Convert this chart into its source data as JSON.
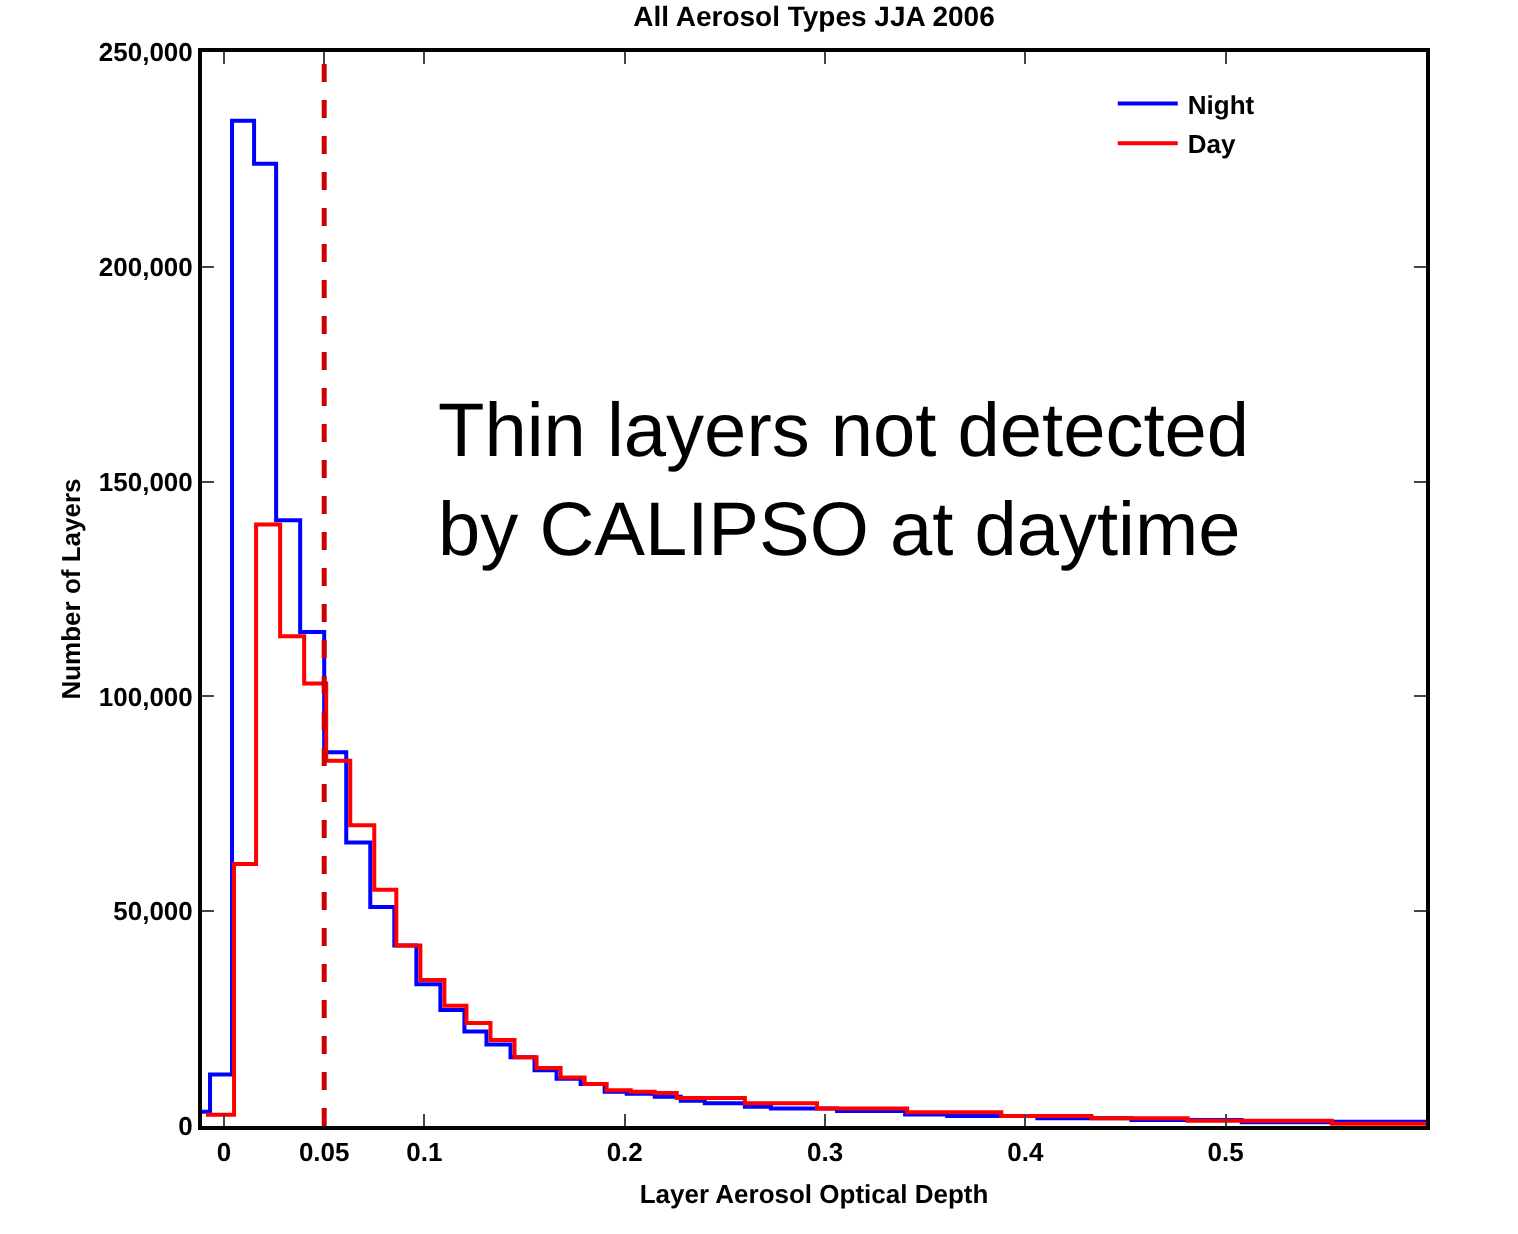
{
  "chart_data": {
    "type": "step",
    "title": "All Aerosol Types JJA 2006",
    "xlabel": "Layer Aerosol Optical Depth",
    "ylabel": "Number of Layers",
    "xlim": [
      -0.011,
      0.6
    ],
    "xticks": [
      0,
      0.05,
      0.1,
      0.2,
      0.3,
      0.4,
      0.5
    ],
    "ylim": [
      0,
      250000
    ],
    "yticks": [
      0,
      {
        "value": 50000,
        "label": "50,000"
      },
      {
        "value": 100000,
        "label": "100,000"
      },
      {
        "value": 150000,
        "label": "150,000"
      },
      {
        "value": 200000,
        "label": "200,000"
      },
      {
        "value": 250000,
        "label": "250,000"
      }
    ],
    "grid": false,
    "legend": "top right",
    "line_style": "solid",
    "marker": "none",
    "series": [
      {
        "name": "Night",
        "color": "#0000ff",
        "x": [
          -0.011,
          -0.007,
          0.004,
          0.015,
          0.026,
          0.038,
          0.05,
          0.061,
          0.073,
          0.085,
          0.096,
          0.108,
          0.12,
          0.131,
          0.143,
          0.155,
          0.166,
          0.178,
          0.19,
          0.201,
          0.215,
          0.228,
          0.24,
          0.26,
          0.273,
          0.306,
          0.34,
          0.361,
          0.406,
          0.453,
          0.508,
          0.551,
          0.6
        ],
        "values": [
          3300,
          12000,
          234000,
          224000,
          141000,
          115000,
          87000,
          66000,
          51000,
          42000,
          33000,
          27000,
          22000,
          19000,
          16000,
          13000,
          11000,
          9800,
          8000,
          7500,
          6800,
          5900,
          5300,
          4500,
          4100,
          3500,
          2700,
          2300,
          1800,
          1400,
          900,
          1000,
          1000
        ]
      },
      {
        "name": "Day",
        "color": "#ff0000",
        "x": [
          -0.009,
          0.005,
          0.016,
          0.028,
          0.04,
          0.051,
          0.063,
          0.075,
          0.086,
          0.098,
          0.11,
          0.121,
          0.133,
          0.145,
          0.156,
          0.168,
          0.18,
          0.191,
          0.203,
          0.215,
          0.226,
          0.26,
          0.296,
          0.341,
          0.388,
          0.433,
          0.481,
          0.553,
          0.6
        ],
        "values": [
          2600,
          61000,
          140000,
          114000,
          103000,
          85000,
          70000,
          55000,
          42000,
          34000,
          28000,
          24000,
          20000,
          16000,
          13500,
          11300,
          9800,
          8300,
          8000,
          7700,
          6500,
          5300,
          4100,
          3200,
          2300,
          1800,
          1200,
          500,
          500
        ]
      }
    ],
    "ref_lines": [
      {
        "axis": "x",
        "value": 0.05,
        "color": "#cc0000",
        "line_style": "dashed"
      }
    ],
    "annotations": [
      "Thin layers not detected\nby CALIPSO at daytime"
    ]
  }
}
